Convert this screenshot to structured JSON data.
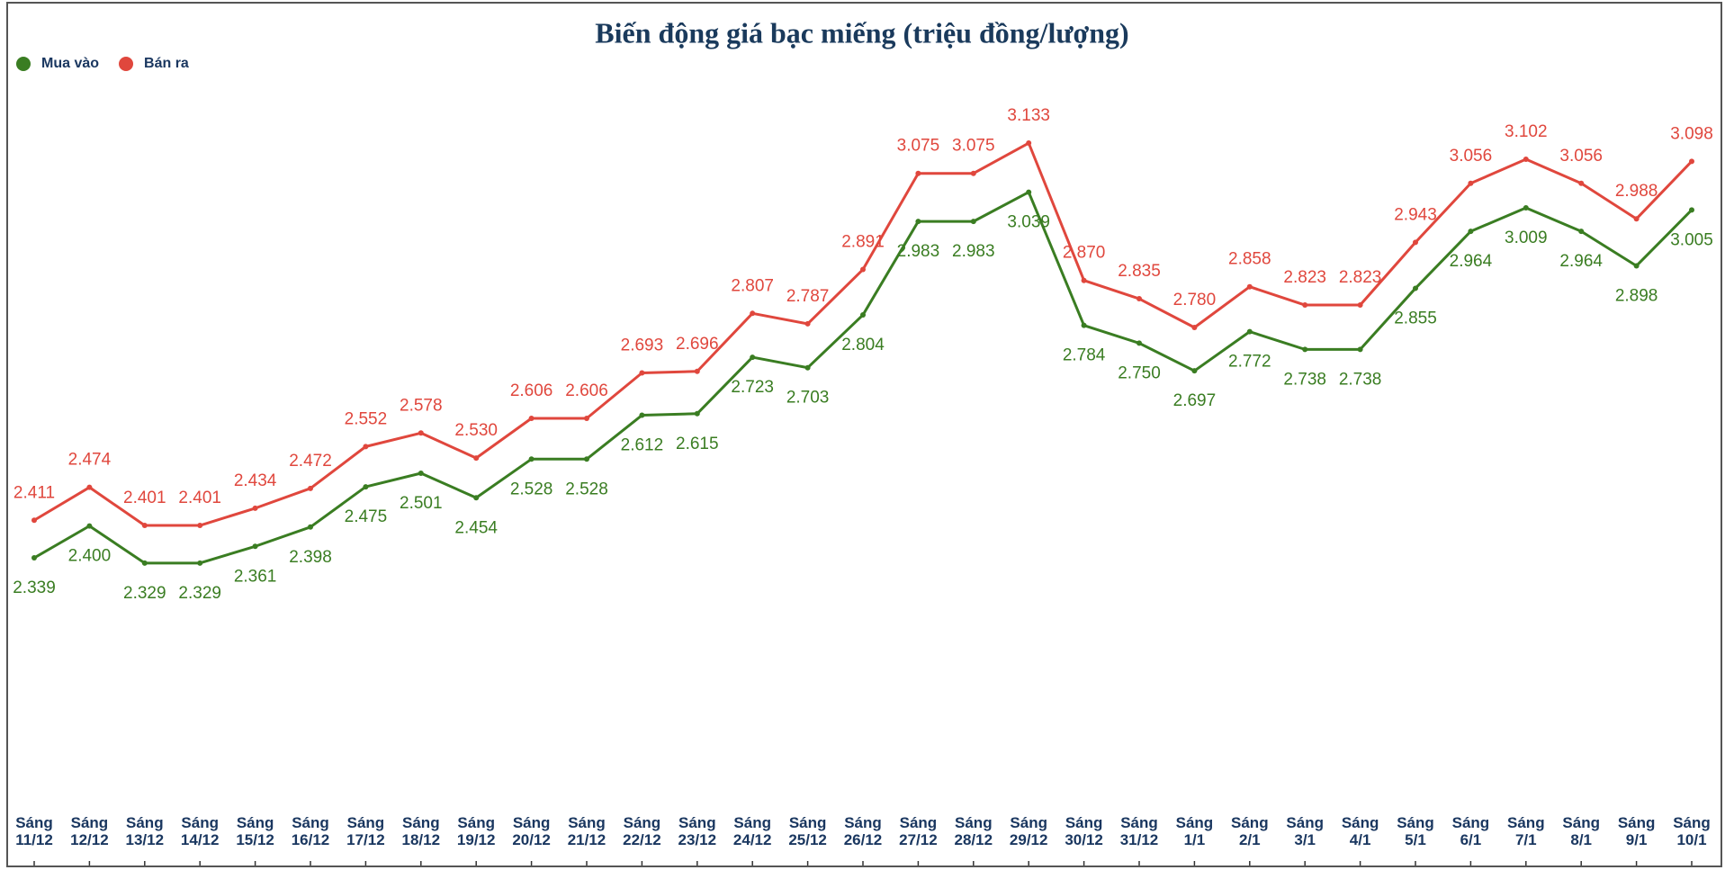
{
  "chart_data": {
    "type": "line",
    "title": "Biến động giá bạc miếng (triệu đồng/lượng)",
    "categories": [
      "Sáng 11/12",
      "Sáng 12/12",
      "Sáng 13/12",
      "Sáng 14/12",
      "Sáng 15/12",
      "Sáng 16/12",
      "Sáng 17/12",
      "Sáng 18/12",
      "Sáng 19/12",
      "Sáng 20/12",
      "Sáng 21/12",
      "Sáng 22/12",
      "Sáng 23/12",
      "Sáng 24/12",
      "Sáng 25/12",
      "Sáng 26/12",
      "Sáng 27/12",
      "Sáng 28/12",
      "Sáng 29/12",
      "Sáng 30/12",
      "Sáng 31/12",
      "Sáng 1/1",
      "Sáng 2/1",
      "Sáng 3/1",
      "Sáng 4/1",
      "Sáng 5/1",
      "Sáng 6/1",
      "Sáng 7/1",
      "Sáng 8/1",
      "Sáng 9/1",
      "Sáng 10/1"
    ],
    "series": [
      {
        "name": "Mua vào",
        "color": "#3a7d22",
        "values": [
          2.339,
          2.4,
          2.329,
          2.329,
          2.361,
          2.398,
          2.475,
          2.501,
          2.454,
          2.528,
          2.528,
          2.612,
          2.615,
          2.723,
          2.703,
          2.804,
          2.983,
          2.983,
          3.039,
          2.784,
          2.75,
          2.697,
          2.772,
          2.738,
          2.738,
          2.855,
          2.964,
          3.009,
          2.964,
          2.898,
          3.005
        ],
        "value_labels": [
          "2.339",
          "2.400",
          "2.329",
          "2.329",
          "2.361",
          "2.398",
          "2.475",
          "2.501",
          "2.454",
          "2.528",
          "2.528",
          "2.612",
          "2.615",
          "2.723",
          "2.703",
          "2.804",
          "2.983",
          "2.983",
          "3.039",
          "2.784",
          "2.750",
          "2.697",
          "2.772",
          "2.738",
          "2.738",
          "2.855",
          "2.964",
          "3.009",
          "2.964",
          "2.898",
          "3.005"
        ]
      },
      {
        "name": "Bán ra",
        "color": "#e0473d",
        "values": [
          2.411,
          2.474,
          2.401,
          2.401,
          2.434,
          2.472,
          2.552,
          2.578,
          2.53,
          2.606,
          2.606,
          2.693,
          2.696,
          2.807,
          2.787,
          2.891,
          3.075,
          3.075,
          3.133,
          2.87,
          2.835,
          2.78,
          2.858,
          2.823,
          2.823,
          2.943,
          3.056,
          3.102,
          3.056,
          2.988,
          3.098
        ],
        "value_labels": [
          "2.411",
          "2.474",
          "2.401",
          "2.401",
          "2.434",
          "2.472",
          "2.552",
          "2.578",
          "2.530",
          "2.606",
          "2.606",
          "2.693",
          "2.696",
          "2.807",
          "2.787",
          "2.891",
          "3.075",
          "3.075",
          "3.133",
          "2.870",
          "2.835",
          "2.780",
          "2.858",
          "2.823",
          "2.823",
          "2.943",
          "3.056",
          "3.102",
          "3.056",
          "2.988",
          "3.098"
        ]
      }
    ],
    "ylim": [
      1.8,
      3.4
    ]
  }
}
